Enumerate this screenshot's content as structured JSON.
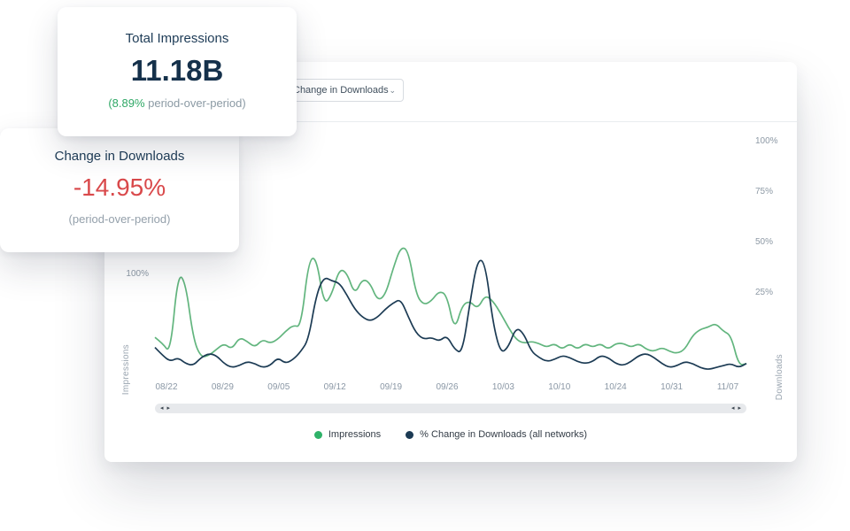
{
  "stat_cards": {
    "total_impressions": {
      "title": "Total Impressions",
      "value": "11.18B",
      "delta": "(8.89%",
      "delta_rest": " period-over-period)"
    },
    "change_in_downloads": {
      "title": "Change in Downloads",
      "value": "-14.95%",
      "subtitle": "(period-over-period)"
    }
  },
  "toolbar": {
    "metric_dropdown": {
      "value": "Change in Downloads"
    }
  },
  "colors": {
    "accent_green": "#2fa866",
    "negative_red": "#d9494b",
    "navy": "#1d3b56"
  },
  "scrollbar": {
    "left_icon": "◂",
    "right_icon": "▸"
  },
  "chart_data": {
    "type": "line",
    "x_tick_labels": [
      "08/22",
      "08/29",
      "09/05",
      "09/12",
      "09/19",
      "09/26",
      "10/03",
      "10/10",
      "10/24",
      "10/31",
      "11/07"
    ],
    "left_axis": {
      "label": "Impressions",
      "ticks": [
        {
          "label": "100%"
        }
      ]
    },
    "right_axis": {
      "label": "Downloads",
      "ticks": [
        {
          "label": "100%",
          "value": 100
        },
        {
          "label": "75%",
          "value": 75
        },
        {
          "label": "50%",
          "value": 50
        },
        {
          "label": "25%",
          "value": 25
        }
      ]
    },
    "y_unit": "%",
    "series": [
      {
        "name": "Impressions",
        "color": "#62b57e",
        "dot_color": "#2fb269",
        "values": [
          3,
          0,
          -5,
          35,
          30,
          2,
          -7,
          -6,
          -3,
          0,
          -3,
          3,
          1,
          -2,
          2,
          0,
          2,
          6,
          9,
          8,
          41,
          43,
          19,
          24,
          37,
          35,
          24,
          32,
          30,
          21,
          24,
          37,
          48,
          46,
          24,
          19,
          21,
          26,
          24,
          6,
          19,
          21,
          17,
          24,
          21,
          15,
          8,
          2,
          0,
          1,
          0,
          -2,
          0,
          -3,
          0,
          -3,
          0,
          -2,
          0,
          -3,
          0,
          0,
          -2,
          0,
          -3,
          -4,
          -2,
          -4,
          -5,
          -3,
          4,
          7,
          8,
          10,
          6,
          4,
          -11,
          -10
        ]
      },
      {
        "name": "% Change in Downloads (all networks)",
        "color": "#1c3b54",
        "dot_color": "#1c3b54",
        "values": [
          -2,
          -6,
          -9,
          -7,
          -10,
          -11,
          -7,
          -5,
          -6,
          -10,
          -12,
          -11,
          -9,
          -10,
          -12,
          -11,
          -7,
          -10,
          -8,
          -4,
          2,
          24,
          33,
          31,
          30,
          24,
          17,
          13,
          11,
          13,
          17,
          20,
          22,
          13,
          5,
          2,
          3,
          1,
          4,
          -3,
          -5,
          20,
          42,
          40,
          10,
          -5,
          -2,
          8,
          5,
          -4,
          -7,
          -9,
          -8,
          -6,
          -7,
          -9,
          -10,
          -9,
          -6,
          -7,
          -10,
          -11,
          -9,
          -6,
          -5,
          -7,
          -10,
          -12,
          -11,
          -9,
          -10,
          -12,
          -13,
          -12,
          -11,
          -10,
          -12,
          -10
        ]
      }
    ]
  }
}
